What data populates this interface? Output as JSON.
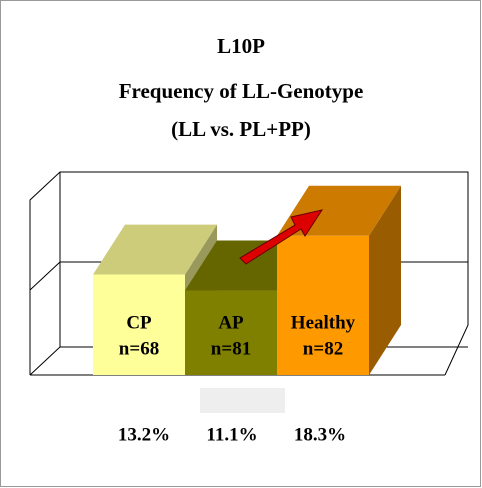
{
  "chart_data": {
    "type": "bar3d",
    "title": [
      "L10P",
      "Frequency of LL-Genotype",
      "(LL vs. PL+PP)"
    ],
    "categories": [
      "CP",
      "AP",
      "Healthy"
    ],
    "sample_sizes": [
      "n=68",
      "n=81",
      "n=82"
    ],
    "values": [
      13.2,
      11.1,
      18.3
    ],
    "value_labels": [
      "13.2%",
      "11.1%",
      "18.3%"
    ],
    "colors": [
      "#ffff99",
      "#808000",
      "#ff9900"
    ],
    "ylim": [
      0,
      23
    ]
  }
}
